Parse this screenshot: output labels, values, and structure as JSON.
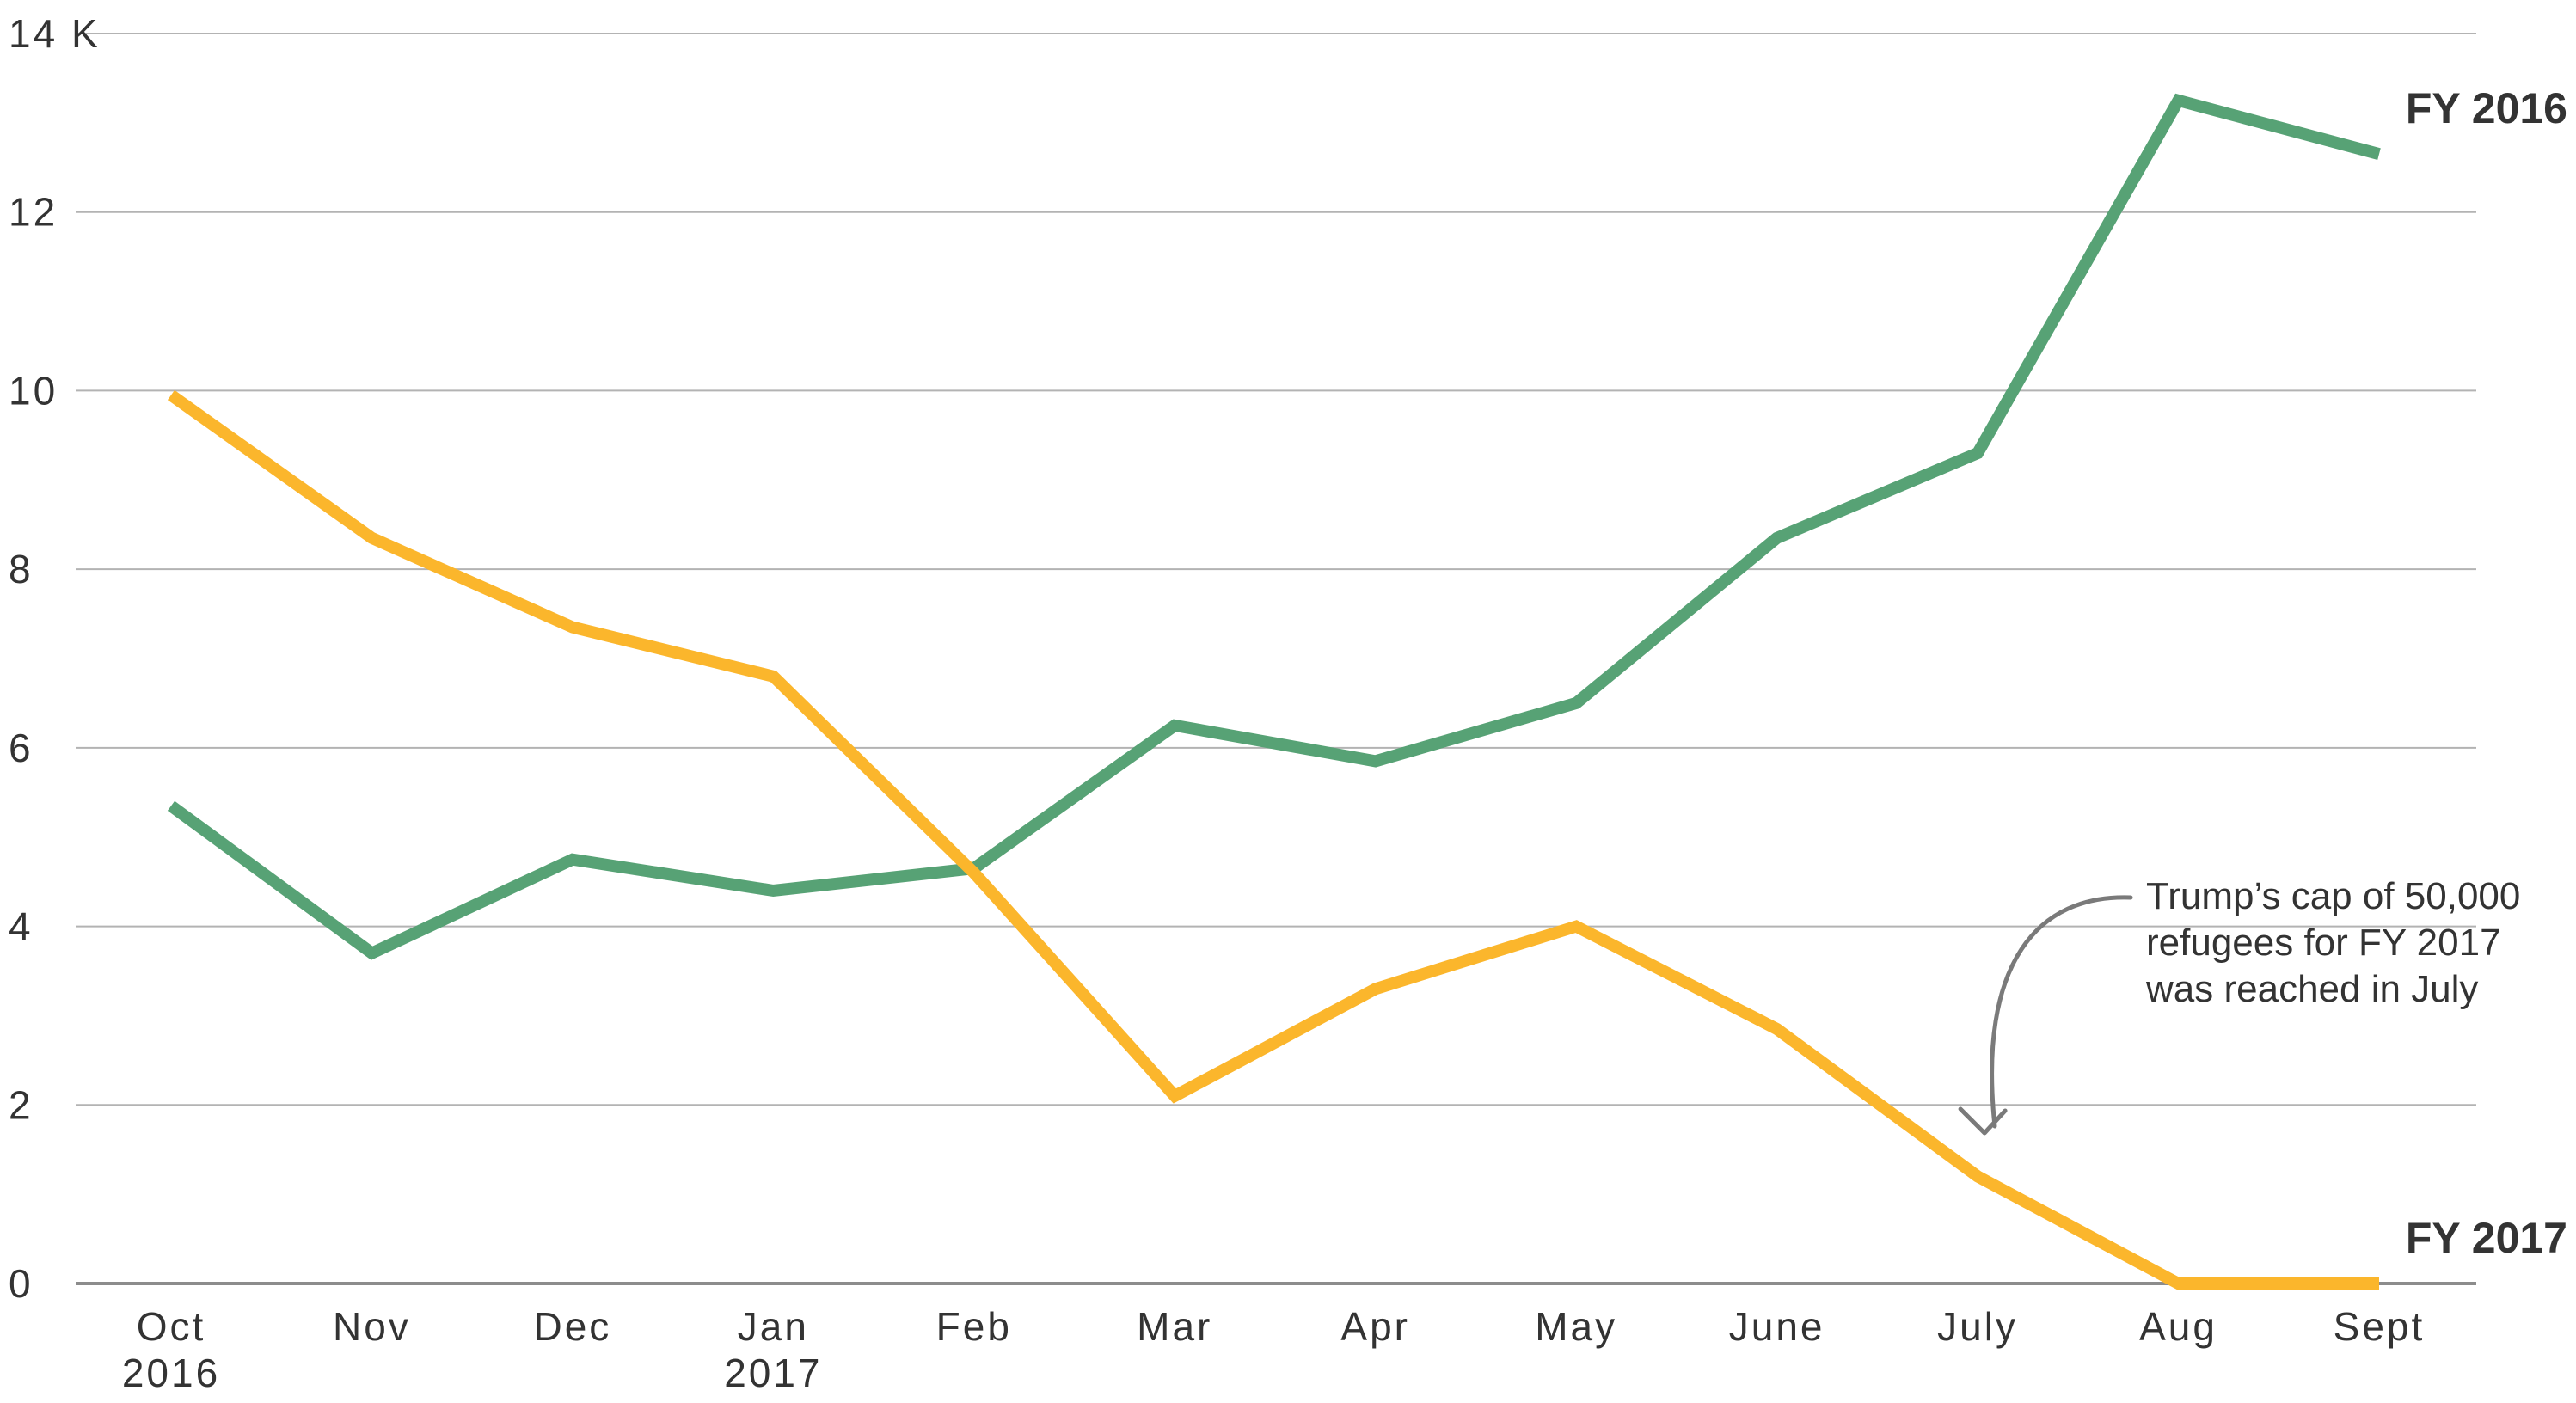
{
  "chart_data": {
    "type": "line",
    "categories": [
      "Oct",
      "Nov",
      "Dec",
      "Jan",
      "Feb",
      "Mar",
      "Apr",
      "May",
      "June",
      "July",
      "Aug",
      "Sept"
    ],
    "category_sublabels": [
      "2016",
      "",
      "",
      "2017",
      "",
      "",
      "",
      "",
      "",
      "",
      "",
      ""
    ],
    "y_ticks": [
      {
        "value": 0,
        "label": "0"
      },
      {
        "value": 2,
        "label": "2"
      },
      {
        "value": 4,
        "label": "4"
      },
      {
        "value": 6,
        "label": "6"
      },
      {
        "value": 8,
        "label": "8"
      },
      {
        "value": 10,
        "label": "10"
      },
      {
        "value": 12,
        "label": "12"
      },
      {
        "value": 14,
        "label": "14 K"
      }
    ],
    "ylim": [
      0,
      14
    ],
    "grid": true,
    "series": [
      {
        "name": "FY 2016",
        "color": "#57a275",
        "values": [
          5.35,
          3.7,
          4.75,
          4.4,
          4.65,
          6.25,
          5.85,
          6.5,
          8.35,
          9.3,
          13.25,
          12.65
        ]
      },
      {
        "name": "FY 2017",
        "color": "#fbb62c",
        "values": [
          9.95,
          8.35,
          7.35,
          6.8,
          4.6,
          2.1,
          3.3,
          4.0,
          2.85,
          1.2,
          0.0,
          0.0
        ]
      }
    ],
    "annotation": {
      "lines": [
        "Trump’s cap of 50,000",
        "refugees for FY 2017",
        "was reached in July"
      ],
      "target_category": "July",
      "arrow_color": "#7a7a7a"
    }
  }
}
